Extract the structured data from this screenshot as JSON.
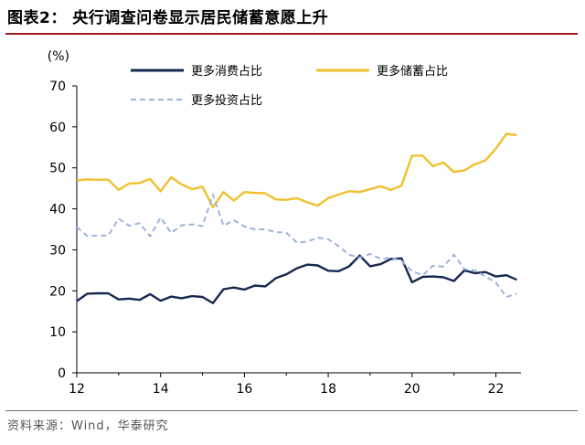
{
  "title": "图表2：  央行调查问卷显示居民储蓄意愿上升",
  "source": "资料来源：Wind，华泰研究",
  "chart_data": {
    "type": "line",
    "unit_label": "(%)",
    "ylim": [
      0,
      70
    ],
    "yticks": [
      0,
      10,
      20,
      30,
      40,
      50,
      60,
      70
    ],
    "xlim": [
      12,
      22.6
    ],
    "xticks": [
      12,
      14,
      16,
      18,
      20,
      22
    ],
    "xtick_labels": [
      "12",
      "14",
      "16",
      "18",
      "20",
      "22"
    ],
    "x_start": 12,
    "x_step": 0.25,
    "series": [
      {
        "name": "更多消费占比",
        "color": "#16284f",
        "style": "solid",
        "values": [
          17.5,
          19.3,
          19.4,
          19.4,
          17.9,
          18.1,
          17.8,
          19.2,
          17.6,
          18.6,
          18.2,
          18.7,
          18.5,
          17.0,
          20.4,
          20.8,
          20.3,
          21.3,
          21.1,
          23.1,
          24.0,
          25.5,
          26.4,
          26.2,
          24.9,
          24.8,
          26.0,
          28.6,
          26.0,
          26.5,
          27.8,
          27.9,
          22.1,
          23.4,
          23.5,
          23.3,
          22.4,
          25.0,
          24.3,
          24.6,
          23.5,
          23.8,
          22.7
        ]
      },
      {
        "name": "更多储蓄占比",
        "color": "#f0c02e",
        "style": "solid",
        "values": [
          46.9,
          47.2,
          47.1,
          47.1,
          44.6,
          46.2,
          46.3,
          47.3,
          44.3,
          47.7,
          46.0,
          44.8,
          45.4,
          40.4,
          44.1,
          42.0,
          44.1,
          43.9,
          43.8,
          42.3,
          42.2,
          42.6,
          41.6,
          40.8,
          42.6,
          43.5,
          44.3,
          44.1,
          44.8,
          45.5,
          44.6,
          45.7,
          53.0,
          53.0,
          50.4,
          51.3,
          49.0,
          49.4,
          50.9,
          51.8,
          54.7,
          58.3,
          58.0
        ]
      },
      {
        "name": "更多投资占比",
        "color": "#9eb3dc",
        "style": "dashed",
        "values": [
          35.6,
          33.4,
          33.5,
          33.5,
          37.6,
          35.9,
          36.5,
          33.3,
          37.9,
          34.1,
          36.0,
          36.2,
          35.8,
          43.5,
          35.9,
          37.2,
          35.7,
          35.0,
          35.0,
          34.3,
          34.2,
          31.8,
          32.0,
          33.0,
          32.6,
          30.9,
          28.8,
          28.1,
          29.0,
          27.8,
          28.1,
          27.3,
          24.8,
          23.8,
          26.1,
          25.9,
          28.8,
          25.3,
          25.0,
          23.5,
          22.0,
          18.5,
          19.3
        ]
      }
    ]
  }
}
